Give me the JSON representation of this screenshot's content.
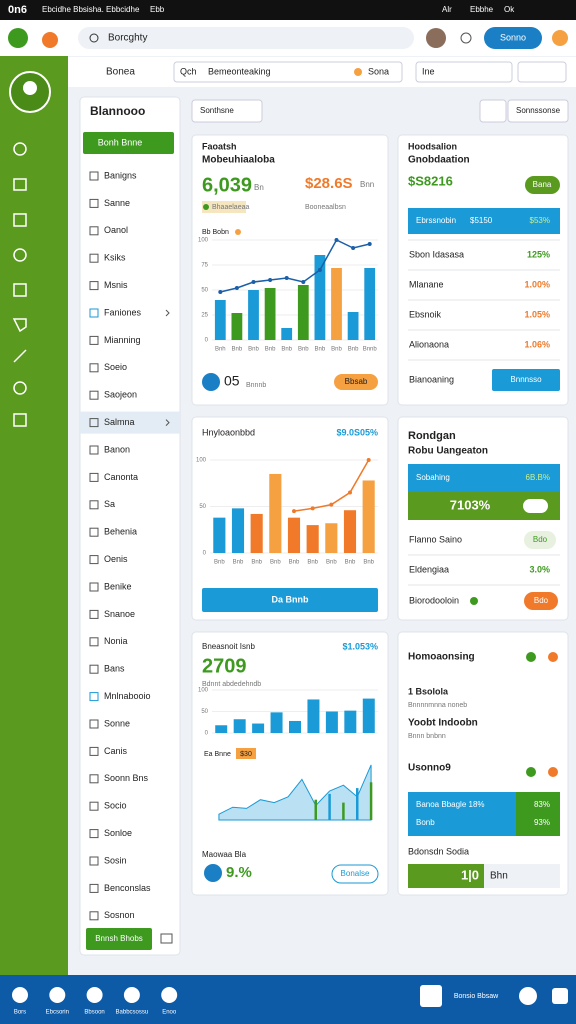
{
  "status_bar": {
    "time": "0n6",
    "carrier": "Ebcidhe Bbsisha. Ebbcidhe",
    "network": "Ebb",
    "indicators": [
      "Alr",
      "Ebbhe",
      "Ok"
    ]
  },
  "header": {
    "search_placeholder": "Borcghty",
    "button": "Sonno"
  },
  "toolbar": {
    "dropdown": "Bonea",
    "search_label": "Qch",
    "search_value": "Bemeonteaking",
    "search_button": "Sona",
    "filter": "Ine"
  },
  "sidebar": {
    "title": "Blannooo",
    "primary_button": "Bonh Bnne",
    "items": [
      "Banigns",
      "Sanne",
      "Oanol",
      "Ksiks",
      "Msnis",
      "Faniones",
      "Mianning",
      "Soeio",
      "Saojeon",
      "Salmna",
      "Banon",
      "Canonta",
      "Sa",
      "Behenia",
      "Oenis",
      "Benike",
      "Snanoe",
      "Nonia",
      "Bans",
      "Mnlnabooio",
      "Sonne",
      "Canis",
      "Soonn Bns",
      "Socio",
      "Sonloe",
      "Sosin",
      "Benconslas",
      "Sosnon"
    ],
    "footer_button": "Bnnsh Bhobs"
  },
  "main": {
    "filter_dropdown": "Sonthsne",
    "action_button": "Sonnssonse"
  },
  "cards": [
    {
      "title": "Faoatsh",
      "subtitle": "Mobeuhiaaloba",
      "metric": "6,039",
      "metric_unit": "Bn",
      "metric2": "$28.6S",
      "metric2_unit": "Bnn",
      "badge": "Bhaaelaeaa",
      "note": "Booneaalbsn",
      "legend": "Bb Bobn",
      "chart": {
        "type": "bar",
        "ylim": [
          0,
          100
        ],
        "yticks": [
          0,
          25,
          50,
          75,
          100
        ],
        "categories": [
          "Bnh",
          "Bnb",
          "Bnb",
          "Bnb",
          "Bnb",
          "Bnb",
          "Bnb",
          "Bnb",
          "Bnb",
          "Bnnb"
        ],
        "series": [
          {
            "kind": "bar",
            "colors": [
              "#1a9ad6",
              "#3d9a1f",
              "#1a9ad6",
              "#3d9a1f",
              "#1a9ad6",
              "#3d9a1f",
              "#1a9ad6",
              "#f5a142",
              "#1a9ad6",
              "#1a9ad6"
            ],
            "values": [
              40,
              27,
              50,
              52,
              12,
              55,
              85,
              72,
              28,
              72
            ]
          },
          {
            "kind": "line",
            "color": "#1a5fa8",
            "values": [
              48,
              52,
              58,
              60,
              62,
              58,
              70,
              100,
              92,
              96
            ]
          }
        ]
      },
      "footer_value": "05",
      "footer_label": "Bnnnb",
      "button": "Bbsab"
    },
    {
      "title": "Hoodsalion",
      "subtitle": "Gnobdaation",
      "metric": "$S8216",
      "button": "Bana",
      "highlight": [
        "Ebrssnobin",
        "$5150",
        "$53%"
      ],
      "rows": [
        {
          "label": "Sbon Idasasa",
          "value": "125%"
        },
        {
          "label": "Mlanane",
          "value": "1.00%"
        },
        {
          "label": "Ebsnoik",
          "value": "1.05%"
        },
        {
          "label": "Alionaona",
          "value": "1.06%"
        }
      ],
      "footer_label": "Bianoaning",
      "footer_button": "Bnnnsso"
    },
    {
      "title": "Hnyloaonbbd",
      "value": "$9.0S05%",
      "chart": {
        "type": "bar",
        "ylim": [
          0,
          100
        ],
        "yticks": [
          0,
          50,
          100
        ],
        "categories": [
          "Bnb",
          "Bnb",
          "Bnb",
          "Bnb",
          "Bnb",
          "Bnb",
          "Bnb",
          "Bnb",
          "Bnb"
        ],
        "series": [
          {
            "kind": "bar",
            "colors": [
              "#1a9ad6",
              "#1a9ad6",
              "#f07a2a",
              "#f5a142",
              "#f07a2a",
              "#f07a2a",
              "#f5a142",
              "#f07a2a",
              "#f5a142"
            ],
            "values": [
              38,
              48,
              42,
              85,
              38,
              30,
              32,
              46,
              78
            ]
          },
          {
            "kind": "line",
            "color": "#f07a2a",
            "values": [
              null,
              null,
              null,
              null,
              45,
              48,
              52,
              65,
              100
            ]
          }
        ]
      },
      "button": "Da Bnnb"
    },
    {
      "title": "Rondgan",
      "subtitle": "Robu Uangeaton",
      "blue_label": "Sobahing",
      "blue_value": "6B.B%",
      "green_value": "7103%",
      "rows": [
        {
          "label": "Flanno Saino",
          "pill": "Bdo"
        },
        {
          "label": "Eldengiaa",
          "value": "3.0%"
        },
        {
          "label": "Biorodooloin",
          "pill": "Bdo"
        }
      ]
    },
    {
      "title": "Bneasnoit Isnb",
      "value": "$1.053%",
      "metric": "2709",
      "caption": "Bdnnt abdedehndb",
      "bar_chart": {
        "type": "bar",
        "ylim": [
          0,
          100
        ],
        "yticks": [
          0,
          50,
          100
        ],
        "series": [
          {
            "kind": "bar",
            "colors": [
              "#1a9ad6",
              "#1a9ad6",
              "#1a9ad6",
              "#1a9ad6",
              "#1a9ad6",
              "#1a9ad6",
              "#1a9ad6",
              "#1a9ad6",
              "#1a9ad6"
            ],
            "values": [
              18,
              32,
              22,
              48,
              28,
              78,
              50,
              52,
              80
            ]
          }
        ]
      },
      "legend": "Ea Bnne",
      "legend_badge": "$30",
      "area_chart": {
        "type": "area",
        "ylim": [
          0,
          100
        ],
        "series": [
          {
            "kind": "area",
            "color": "#1a9ad6",
            "values": [
              10,
              22,
              20,
              35,
              30,
              40,
              70,
              25,
              50,
              60,
              40,
              95
            ]
          },
          {
            "kind": "bar",
            "colors": [
              "#3d9a1f",
              "#3d9a1f",
              "#3d9a1f",
              "#3d9a1f",
              "#3d9a1f",
              "#3d9a1f",
              "#3d9a1f",
              "#3d9a1f",
              "#1a9ad6",
              "#3d9a1f",
              "#1a9ad6",
              "#3d9a1f"
            ],
            "values": [
              null,
              null,
              null,
              null,
              null,
              null,
              null,
              35,
              45,
              30,
              55,
              65
            ]
          }
        ]
      },
      "footer_label": "Maowaa Bla",
      "footer_value": "9.%",
      "button": "Bonalse"
    },
    {
      "title": "Homoaonsing",
      "item1": "1 Bsolola",
      "item1_sub": "Bnnnnmnna noneb",
      "item2": "Yoobt Indoobn",
      "item2_sub": "Bnnn bnbnn",
      "item3": "Usonno9",
      "block": [
        [
          "Banoa Bbagle 18%",
          "83%"
        ],
        [
          "Bonb",
          "93%"
        ]
      ],
      "footer_label": "Bdonsdn Sodia",
      "footer_value": "1|0",
      "footer_unit": "Bhn"
    }
  ],
  "bottom_nav": {
    "items": [
      "Bors",
      "Ebcsorin",
      "Bbsoon",
      "Babbcsossu",
      "Enoo"
    ],
    "right_label": "Bonsio Bbsaw"
  }
}
